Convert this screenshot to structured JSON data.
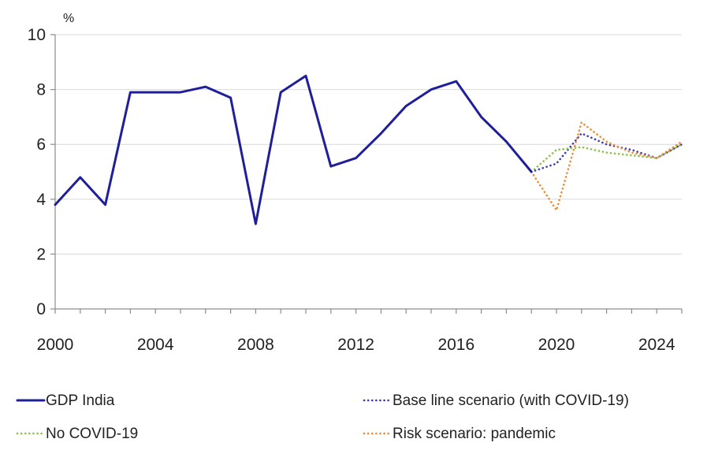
{
  "chart_data": {
    "type": "line",
    "ylabel": "%",
    "xlim": [
      2000,
      2025
    ],
    "ylim": [
      0,
      10
    ],
    "yticks": [
      0,
      2,
      4,
      6,
      8,
      10
    ],
    "xticks": [
      2000,
      2004,
      2008,
      2012,
      2016,
      2020,
      2024
    ],
    "grid": "horizontal",
    "legend": "bottom",
    "series": [
      {
        "name": "GDP India",
        "style": "solid",
        "color": "#1f1f9a",
        "x": [
          2000,
          2001,
          2002,
          2003,
          2004,
          2005,
          2006,
          2007,
          2008,
          2009,
          2010,
          2011,
          2012,
          2013,
          2014,
          2015,
          2016,
          2017,
          2018,
          2019
        ],
        "y": [
          3.8,
          4.8,
          3.8,
          7.9,
          7.9,
          7.9,
          8.1,
          7.7,
          3.1,
          7.9,
          8.5,
          5.2,
          5.5,
          6.4,
          7.4,
          8.0,
          8.3,
          7.0,
          6.1,
          5.0
        ]
      },
      {
        "name": "Base line scenario (with COVID-19)",
        "style": "dotted",
        "color": "#3b3bb0",
        "x": [
          2019,
          2020,
          2021,
          2022,
          2023,
          2024,
          2025
        ],
        "y": [
          5.0,
          5.3,
          6.4,
          6.0,
          5.8,
          5.5,
          6.0
        ]
      },
      {
        "name": "No COVID-19",
        "style": "dotted",
        "color": "#8cc04a",
        "x": [
          2019,
          2020,
          2021,
          2022,
          2023,
          2024,
          2025
        ],
        "y": [
          5.0,
          5.8,
          5.9,
          5.7,
          5.6,
          5.5,
          6.0
        ]
      },
      {
        "name": "Risk scenario: pandemic",
        "style": "dotted",
        "color": "#f08a33",
        "x": [
          2019,
          2020,
          2021,
          2022,
          2023,
          2024,
          2025
        ],
        "y": [
          5.0,
          3.6,
          6.8,
          6.1,
          5.7,
          5.5,
          6.1
        ]
      }
    ]
  }
}
